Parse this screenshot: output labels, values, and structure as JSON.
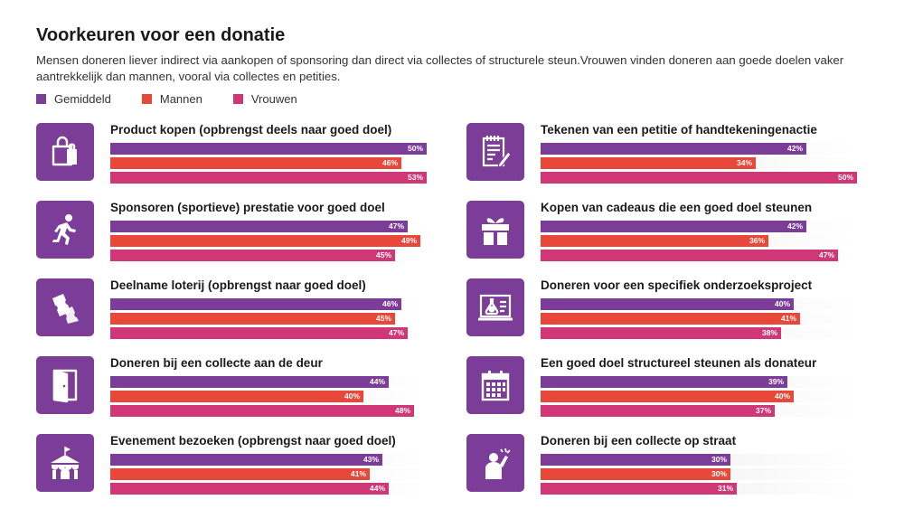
{
  "title": "Voorkeuren voor een donatie",
  "subtitle": "Mensen doneren liever indirect via aankopen of sponsoring dan direct via collectes of structurele steun.Vrouwen vinden doneren aan goede doelen vaker aantrekkelijk dan mannen, vooral via collectes en petities.",
  "colors": {
    "Gemiddeld": "#7b3d97",
    "Mannen": "#e8483a",
    "Vrouwen": "#cf3777",
    "icon_bg": "#7b3d97"
  },
  "chart_data": {
    "type": "bar",
    "orientation": "horizontal",
    "unit": "%",
    "series_names": [
      "Gemiddeld",
      "Mannen",
      "Vrouwen"
    ],
    "legend": [
      "Gemiddeld",
      "Mannen",
      "Vrouwen"
    ],
    "xlim": [
      0,
      100
    ],
    "categories": [
      {
        "label": "Product kopen (opbrengst deels naar goed doel)",
        "icon": "shopping-bag-icon",
        "values": [
          50,
          46,
          53
        ],
        "labels": [
          "50%",
          "46%",
          "53%"
        ]
      },
      {
        "label": "Sponsoren (sportieve) prestatie voor goed doel",
        "icon": "runner-icon",
        "values": [
          47,
          49,
          45
        ],
        "labels": [
          "47%",
          "49%",
          "45%"
        ]
      },
      {
        "label": "Deelname loterij (opbrengst naar goed doel)",
        "icon": "tickets-icon",
        "values": [
          46,
          45,
          47
        ],
        "labels": [
          "46%",
          "45%",
          "47%"
        ]
      },
      {
        "label": "Doneren bij een collecte aan de deur",
        "icon": "door-icon",
        "values": [
          44,
          40,
          48
        ],
        "labels": [
          "44%",
          "40%",
          "48%"
        ]
      },
      {
        "label": "Evenement bezoeken (opbrengst naar goed doel)",
        "icon": "circus-tent-icon",
        "values": [
          43,
          41,
          44
        ],
        "labels": [
          "43%",
          "41%",
          "44%"
        ]
      },
      {
        "label": "Tekenen van een petitie of handtekeningenactie",
        "icon": "petition-icon",
        "values": [
          42,
          34,
          50
        ],
        "labels": [
          "42%",
          "34%",
          "50%"
        ]
      },
      {
        "label": "Kopen van cadeaus die een goed doel steunen",
        "icon": "gift-icon",
        "values": [
          42,
          36,
          47
        ],
        "labels": [
          "42%",
          "36%",
          "47%"
        ]
      },
      {
        "label": "Doneren voor een specifiek onderzoeksproject",
        "icon": "research-icon",
        "values": [
          40,
          41,
          38
        ],
        "labels": [
          "40%",
          "41%",
          "38%"
        ]
      },
      {
        "label": "Een goed doel structureel steunen als donateur",
        "icon": "calendar-icon",
        "values": [
          39,
          40,
          37
        ],
        "labels": [
          "39%",
          "40%",
          "37%"
        ]
      },
      {
        "label": "Doneren bij een collecte op straat",
        "icon": "person-waving-icon",
        "values": [
          30,
          30,
          31
        ],
        "labels": [
          "30%",
          "30%",
          "31%"
        ]
      }
    ]
  }
}
